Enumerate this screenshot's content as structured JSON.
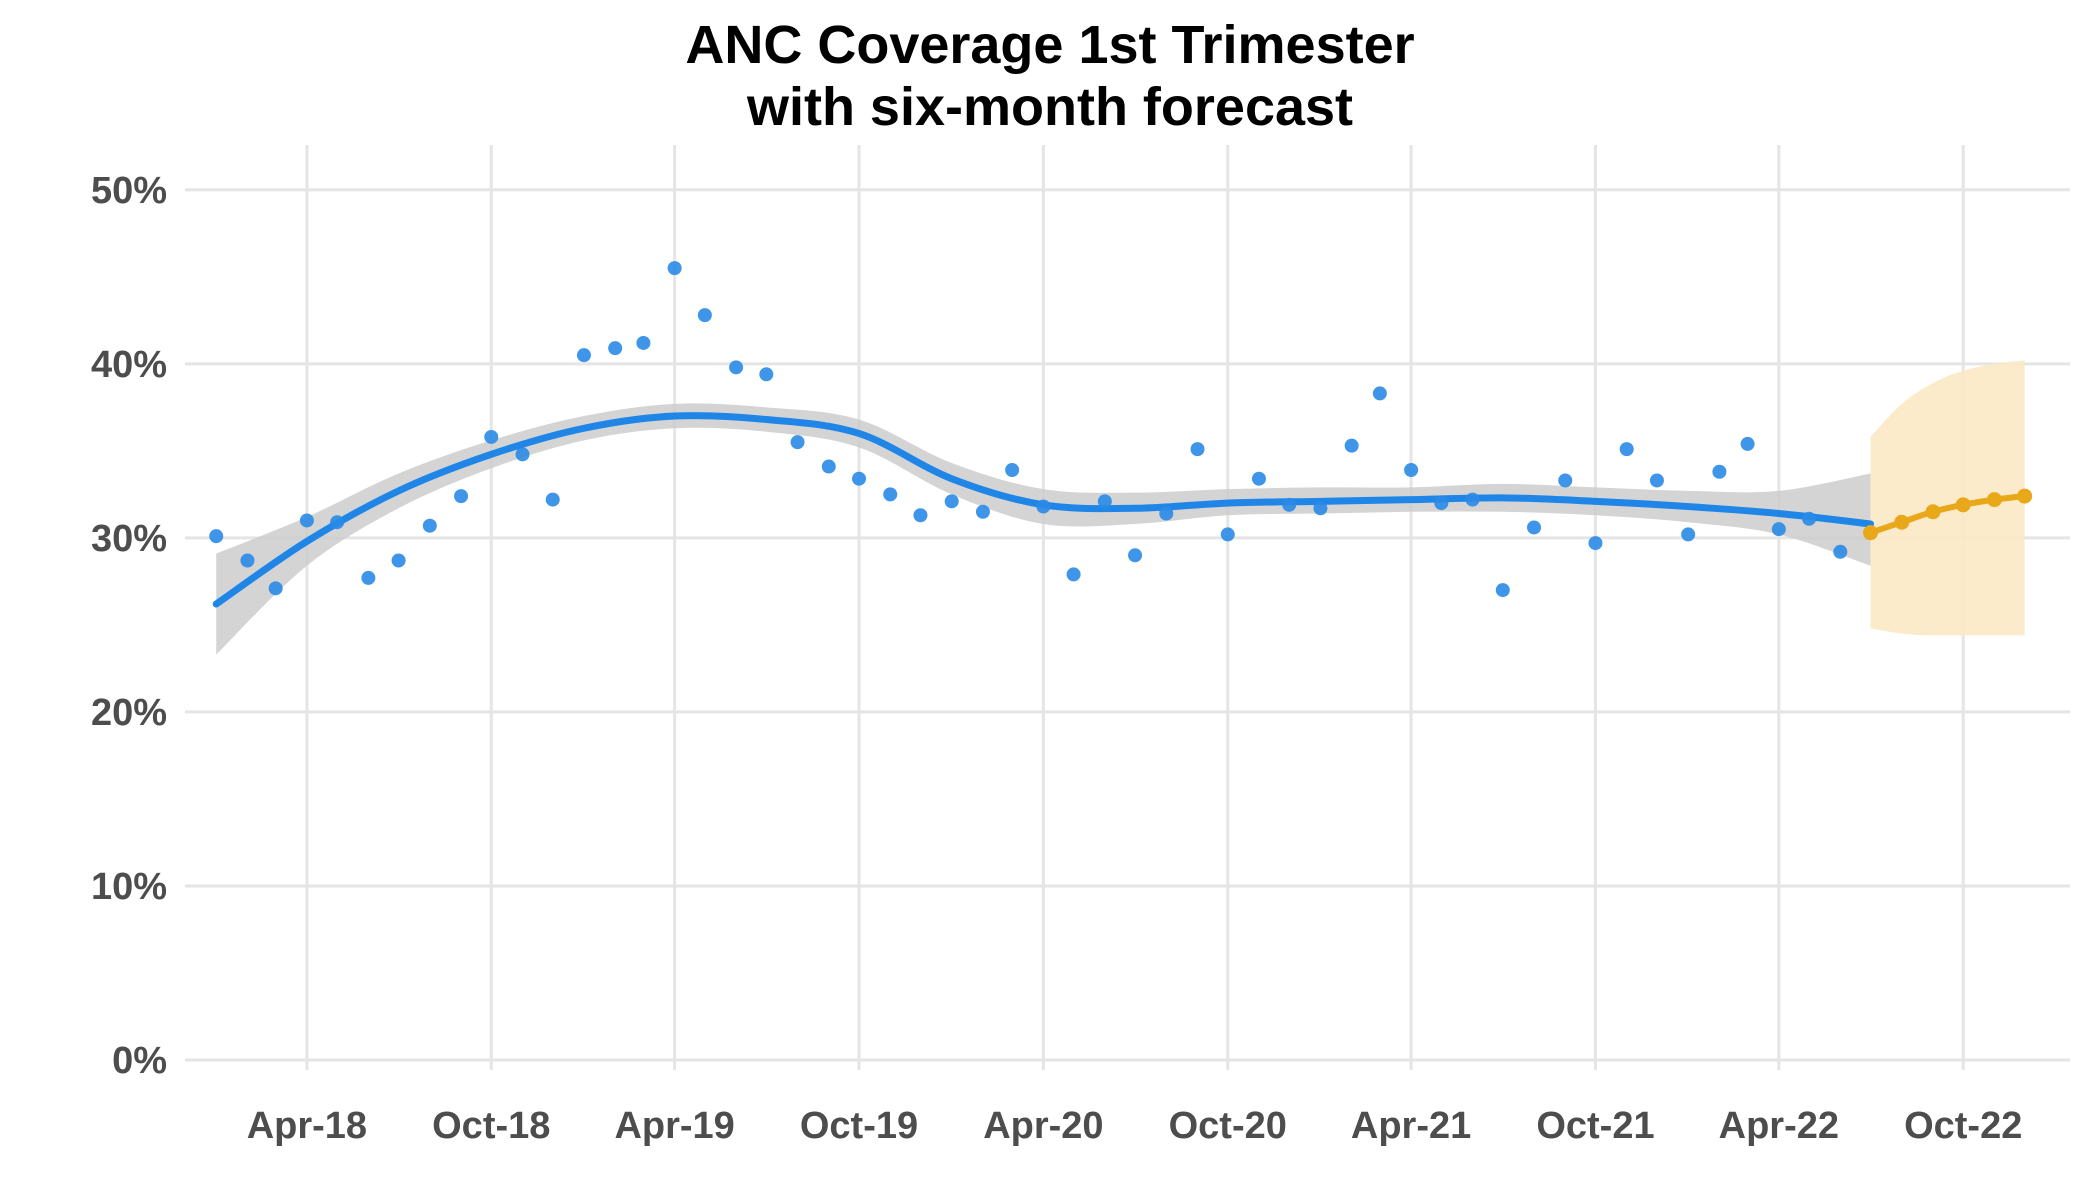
{
  "chart_data": {
    "type": "scatter",
    "title": "ANC Coverage 1st Trimester",
    "subtitle": "with six-month forecast",
    "xlabel": "",
    "ylabel": "",
    "x_axis": {
      "type": "date",
      "range": [
        "2017-12-01",
        "2023-01-15"
      ],
      "ticks": [
        "2018-04-01",
        "2018-10-01",
        "2019-04-01",
        "2019-10-01",
        "2020-04-01",
        "2020-10-01",
        "2021-04-01",
        "2021-10-01",
        "2022-04-01",
        "2022-10-01"
      ],
      "tick_labels": [
        "Apr-18",
        "Oct-18",
        "Apr-19",
        "Oct-19",
        "Apr-20",
        "Oct-20",
        "Apr-21",
        "Oct-21",
        "Apr-22",
        "Oct-22"
      ]
    },
    "y_axis": {
      "range": [
        0,
        0.52
      ],
      "ticks": [
        0,
        0.1,
        0.2,
        0.3,
        0.4,
        0.5
      ],
      "tick_labels": [
        "0%",
        "10%",
        "20%",
        "30%",
        "40%",
        "50%"
      ]
    },
    "grid": true,
    "legend": "none",
    "colors": {
      "observed": "#2a8ae6",
      "smooth": "#1f86e8",
      "confidence_band": "#cccccc",
      "forecast": "#e8a81a",
      "forecast_band": "#fbe9c4",
      "grid": "#e5e5e5"
    },
    "series": [
      {
        "kind": "observed_points",
        "x": [
          "2018-01-01",
          "2018-02-01",
          "2018-03-01",
          "2018-04-01",
          "2018-05-01",
          "2018-06-01",
          "2018-07-01",
          "2018-08-01",
          "2018-09-01",
          "2018-10-01",
          "2018-11-01",
          "2018-12-01",
          "2019-01-01",
          "2019-02-01",
          "2019-03-01",
          "2019-04-01",
          "2019-05-01",
          "2019-06-01",
          "2019-07-01",
          "2019-08-01",
          "2019-09-01",
          "2019-10-01",
          "2019-11-01",
          "2019-12-01",
          "2020-01-01",
          "2020-02-01",
          "2020-03-01",
          "2020-04-01",
          "2020-05-01",
          "2020-06-01",
          "2020-07-01",
          "2020-08-01",
          "2020-09-01",
          "2020-10-01",
          "2020-11-01",
          "2020-12-01",
          "2021-01-01",
          "2021-02-01",
          "2021-03-01",
          "2021-04-01",
          "2021-05-01",
          "2021-06-01",
          "2021-07-01",
          "2021-08-01",
          "2021-09-01",
          "2021-10-01",
          "2021-11-01",
          "2021-12-01",
          "2022-01-01",
          "2022-02-01",
          "2022-03-01",
          "2022-04-01",
          "2022-05-01",
          "2022-06-01"
        ],
        "y": [
          0.301,
          0.287,
          0.271,
          0.31,
          0.309,
          0.277,
          0.287,
          0.307,
          0.324,
          0.358,
          0.348,
          0.322,
          0.405,
          0.409,
          0.412,
          0.455,
          0.428,
          0.398,
          0.394,
          0.355,
          0.341,
          0.334,
          0.325,
          0.313,
          0.321,
          0.315,
          0.339,
          0.318,
          0.279,
          0.321,
          0.29,
          0.314,
          0.351,
          0.302,
          0.334,
          0.319,
          0.317,
          0.353,
          0.383,
          0.339,
          0.32,
          0.322,
          0.27,
          0.306,
          0.333,
          0.297,
          0.351,
          0.333,
          0.302,
          0.338,
          0.354,
          0.305,
          0.311,
          0.292
        ]
      },
      {
        "kind": "smooth_fit",
        "x": [
          "2018-01-01",
          "2018-04-01",
          "2018-07-01",
          "2018-10-01",
          "2019-01-01",
          "2019-04-01",
          "2019-07-01",
          "2019-10-01",
          "2020-01-01",
          "2020-04-01",
          "2020-07-01",
          "2020-10-01",
          "2021-01-01",
          "2021-04-01",
          "2021-07-01",
          "2021-10-01",
          "2022-01-01",
          "2022-04-01",
          "2022-07-01"
        ],
        "y": [
          0.262,
          0.298,
          0.327,
          0.348,
          0.363,
          0.37,
          0.368,
          0.36,
          0.334,
          0.319,
          0.317,
          0.32,
          0.321,
          0.322,
          0.323,
          0.321,
          0.318,
          0.314,
          0.308
        ],
        "lower": [
          0.233,
          0.284,
          0.317,
          0.34,
          0.356,
          0.363,
          0.361,
          0.352,
          0.325,
          0.308,
          0.308,
          0.313,
          0.314,
          0.315,
          0.315,
          0.313,
          0.309,
          0.302,
          0.284
        ],
        "upper": [
          0.291,
          0.312,
          0.337,
          0.356,
          0.37,
          0.377,
          0.375,
          0.368,
          0.343,
          0.328,
          0.326,
          0.328,
          0.329,
          0.329,
          0.331,
          0.329,
          0.327,
          0.327,
          0.337
        ]
      },
      {
        "kind": "forecast",
        "x": [
          "2022-07-01",
          "2022-08-01",
          "2022-09-01",
          "2022-10-01",
          "2022-11-01",
          "2022-12-01"
        ],
        "y": [
          0.303,
          0.309,
          0.315,
          0.319,
          0.322,
          0.324
        ],
        "lower": [
          0.248,
          0.245,
          0.244,
          0.244,
          0.244,
          0.244
        ],
        "upper": [
          0.358,
          0.377,
          0.389,
          0.396,
          0.4,
          0.402
        ]
      }
    ]
  }
}
